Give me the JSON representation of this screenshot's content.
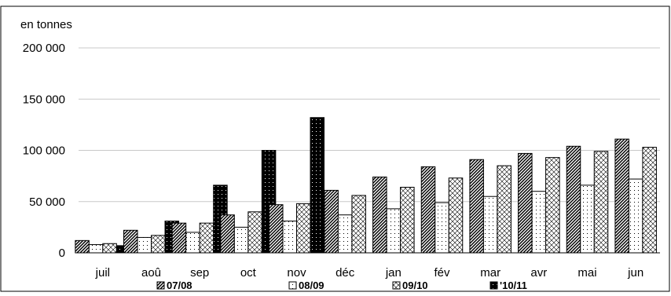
{
  "chart_data": {
    "type": "bar",
    "unit_label": "en tonnes",
    "categories": [
      "juil",
      "aoû",
      "sep",
      "oct",
      "nov",
      "déc",
      "jan",
      "fév",
      "mar",
      "avr",
      "mai",
      "jun"
    ],
    "y_ticks": [
      "0",
      "50 000",
      "100 000",
      "150 000",
      "200 000"
    ],
    "ylim": [
      0,
      200000
    ],
    "grid": true,
    "legend_position": "bottom",
    "series": [
      {
        "name": "07/08",
        "pattern": "diagonal",
        "values": [
          12000,
          22000,
          29000,
          37000,
          47000,
          61000,
          74000,
          84000,
          91000,
          97000,
          104000,
          111000
        ]
      },
      {
        "name": "08/09",
        "pattern": "dots",
        "values": [
          8000,
          15000,
          20000,
          25000,
          31000,
          37000,
          43000,
          49000,
          55000,
          60000,
          66000,
          72000
        ]
      },
      {
        "name": "09/10",
        "pattern": "crosshatch",
        "values": [
          9000,
          17000,
          29000,
          40000,
          48000,
          56000,
          64000,
          73000,
          85000,
          93000,
          99000,
          103000
        ]
      },
      {
        "name": "'10/11",
        "pattern": "dark",
        "values": [
          7000,
          31000,
          66000,
          100000,
          132000,
          null,
          null,
          null,
          null,
          null,
          null,
          null
        ]
      }
    ]
  }
}
